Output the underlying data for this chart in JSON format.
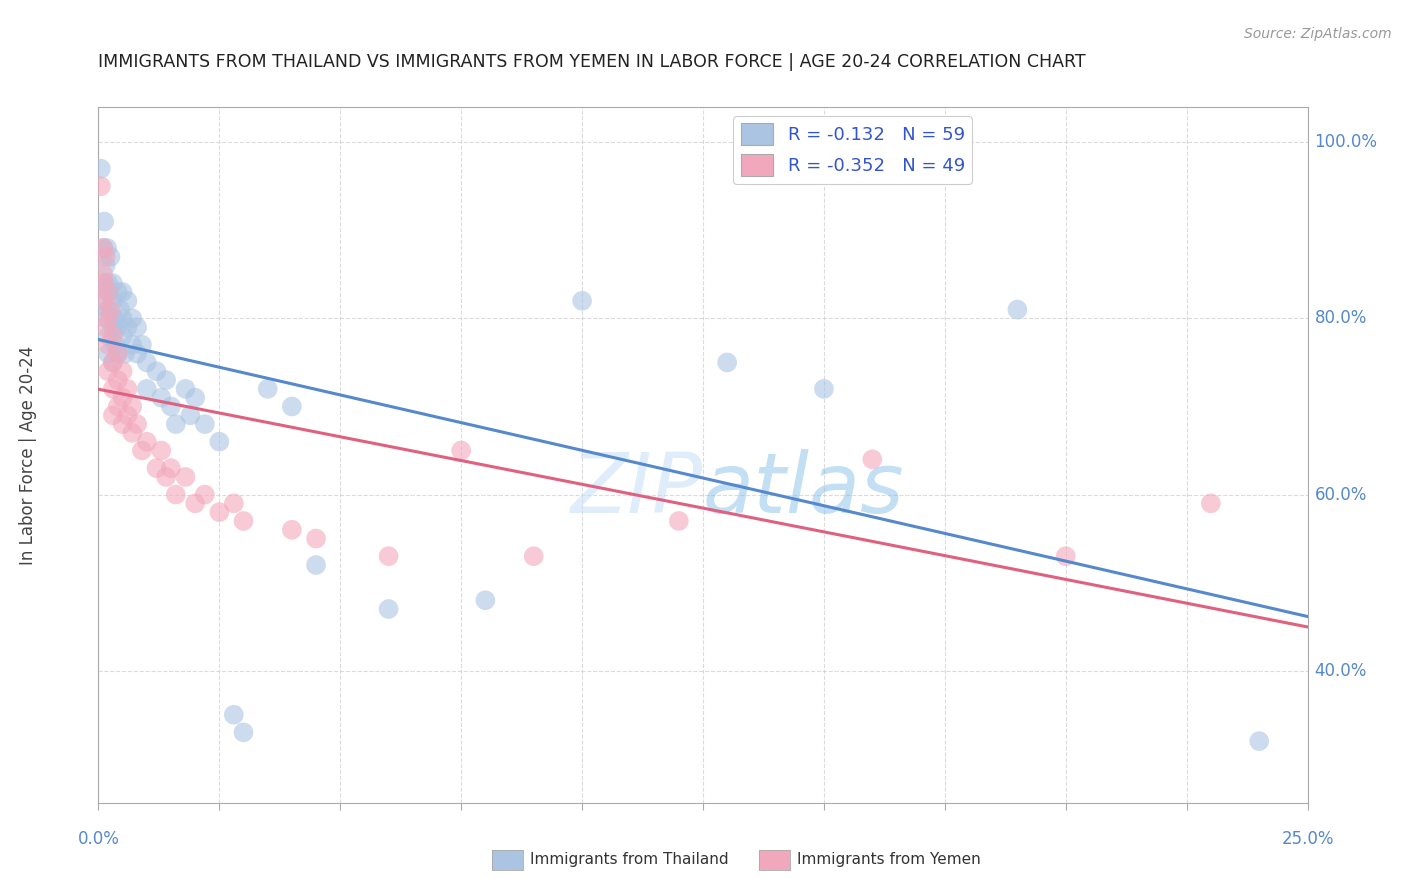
{
  "title": "IMMIGRANTS FROM THAILAND VS IMMIGRANTS FROM YEMEN IN LABOR FORCE | AGE 20-24 CORRELATION CHART",
  "source": "Source: ZipAtlas.com",
  "ylabel_label": "In Labor Force | Age 20-24",
  "xmin": 0.0,
  "xmax": 0.25,
  "ymin": 0.25,
  "ymax": 1.04,
  "thailand_R": -0.132,
  "thailand_N": 59,
  "yemen_R": -0.352,
  "yemen_N": 49,
  "thailand_color": "#aac4e2",
  "yemen_color": "#f2a8bc",
  "trend_thailand_color": "#5588cc",
  "trend_yemen_color": "#e06080",
  "background_color": "#ffffff",
  "grid_color": "#cccccc",
  "title_color": "#222222",
  "axis_label_color": "#444444",
  "tick_color": "#5588cc",
  "legend_r_color": "#3355cc",
  "yticks": [
    0.4,
    0.6,
    0.8,
    1.0
  ],
  "ytick_labels": [
    "40.0%",
    "60.0%",
    "80.0%",
    "100.0%"
  ],
  "watermark": "ZIPatlas",
  "thailand_scatter": [
    [
      0.0005,
      0.97
    ],
    [
      0.0008,
      0.82
    ],
    [
      0.001,
      0.88
    ],
    [
      0.001,
      0.84
    ],
    [
      0.0012,
      0.91
    ],
    [
      0.0015,
      0.86
    ],
    [
      0.0015,
      0.8
    ],
    [
      0.0018,
      0.88
    ],
    [
      0.002,
      0.84
    ],
    [
      0.002,
      0.81
    ],
    [
      0.002,
      0.78
    ],
    [
      0.002,
      0.76
    ],
    [
      0.0022,
      0.83
    ],
    [
      0.0025,
      0.87
    ],
    [
      0.003,
      0.82
    ],
    [
      0.003,
      0.79
    ],
    [
      0.003,
      0.75
    ],
    [
      0.003,
      0.84
    ],
    [
      0.0032,
      0.8
    ],
    [
      0.0035,
      0.77
    ],
    [
      0.004,
      0.83
    ],
    [
      0.004,
      0.79
    ],
    [
      0.004,
      0.76
    ],
    [
      0.0045,
      0.81
    ],
    [
      0.005,
      0.78
    ],
    [
      0.005,
      0.83
    ],
    [
      0.005,
      0.8
    ],
    [
      0.0055,
      0.76
    ],
    [
      0.006,
      0.79
    ],
    [
      0.006,
      0.82
    ],
    [
      0.007,
      0.77
    ],
    [
      0.007,
      0.8
    ],
    [
      0.008,
      0.79
    ],
    [
      0.008,
      0.76
    ],
    [
      0.009,
      0.77
    ],
    [
      0.01,
      0.75
    ],
    [
      0.01,
      0.72
    ],
    [
      0.012,
      0.74
    ],
    [
      0.013,
      0.71
    ],
    [
      0.014,
      0.73
    ],
    [
      0.015,
      0.7
    ],
    [
      0.016,
      0.68
    ],
    [
      0.018,
      0.72
    ],
    [
      0.019,
      0.69
    ],
    [
      0.02,
      0.71
    ],
    [
      0.022,
      0.68
    ],
    [
      0.025,
      0.66
    ],
    [
      0.028,
      0.35
    ],
    [
      0.03,
      0.33
    ],
    [
      0.035,
      0.72
    ],
    [
      0.04,
      0.7
    ],
    [
      0.045,
      0.52
    ],
    [
      0.06,
      0.47
    ],
    [
      0.08,
      0.48
    ],
    [
      0.1,
      0.82
    ],
    [
      0.13,
      0.75
    ],
    [
      0.15,
      0.72
    ],
    [
      0.19,
      0.81
    ],
    [
      0.24,
      0.32
    ]
  ],
  "yemen_scatter": [
    [
      0.0005,
      0.95
    ],
    [
      0.001,
      0.88
    ],
    [
      0.001,
      0.85
    ],
    [
      0.001,
      0.82
    ],
    [
      0.0012,
      0.84
    ],
    [
      0.0015,
      0.87
    ],
    [
      0.0015,
      0.79
    ],
    [
      0.002,
      0.83
    ],
    [
      0.002,
      0.8
    ],
    [
      0.002,
      0.77
    ],
    [
      0.002,
      0.74
    ],
    [
      0.0025,
      0.81
    ],
    [
      0.003,
      0.78
    ],
    [
      0.003,
      0.75
    ],
    [
      0.003,
      0.72
    ],
    [
      0.003,
      0.69
    ],
    [
      0.004,
      0.76
    ],
    [
      0.004,
      0.73
    ],
    [
      0.004,
      0.7
    ],
    [
      0.005,
      0.74
    ],
    [
      0.005,
      0.71
    ],
    [
      0.005,
      0.68
    ],
    [
      0.006,
      0.72
    ],
    [
      0.006,
      0.69
    ],
    [
      0.007,
      0.7
    ],
    [
      0.007,
      0.67
    ],
    [
      0.008,
      0.68
    ],
    [
      0.009,
      0.65
    ],
    [
      0.01,
      0.66
    ],
    [
      0.012,
      0.63
    ],
    [
      0.013,
      0.65
    ],
    [
      0.014,
      0.62
    ],
    [
      0.015,
      0.63
    ],
    [
      0.016,
      0.6
    ],
    [
      0.018,
      0.62
    ],
    [
      0.02,
      0.59
    ],
    [
      0.022,
      0.6
    ],
    [
      0.025,
      0.58
    ],
    [
      0.028,
      0.59
    ],
    [
      0.03,
      0.57
    ],
    [
      0.04,
      0.56
    ],
    [
      0.045,
      0.55
    ],
    [
      0.06,
      0.53
    ],
    [
      0.075,
      0.65
    ],
    [
      0.09,
      0.53
    ],
    [
      0.12,
      0.57
    ],
    [
      0.16,
      0.64
    ],
    [
      0.2,
      0.53
    ],
    [
      0.23,
      0.59
    ]
  ]
}
